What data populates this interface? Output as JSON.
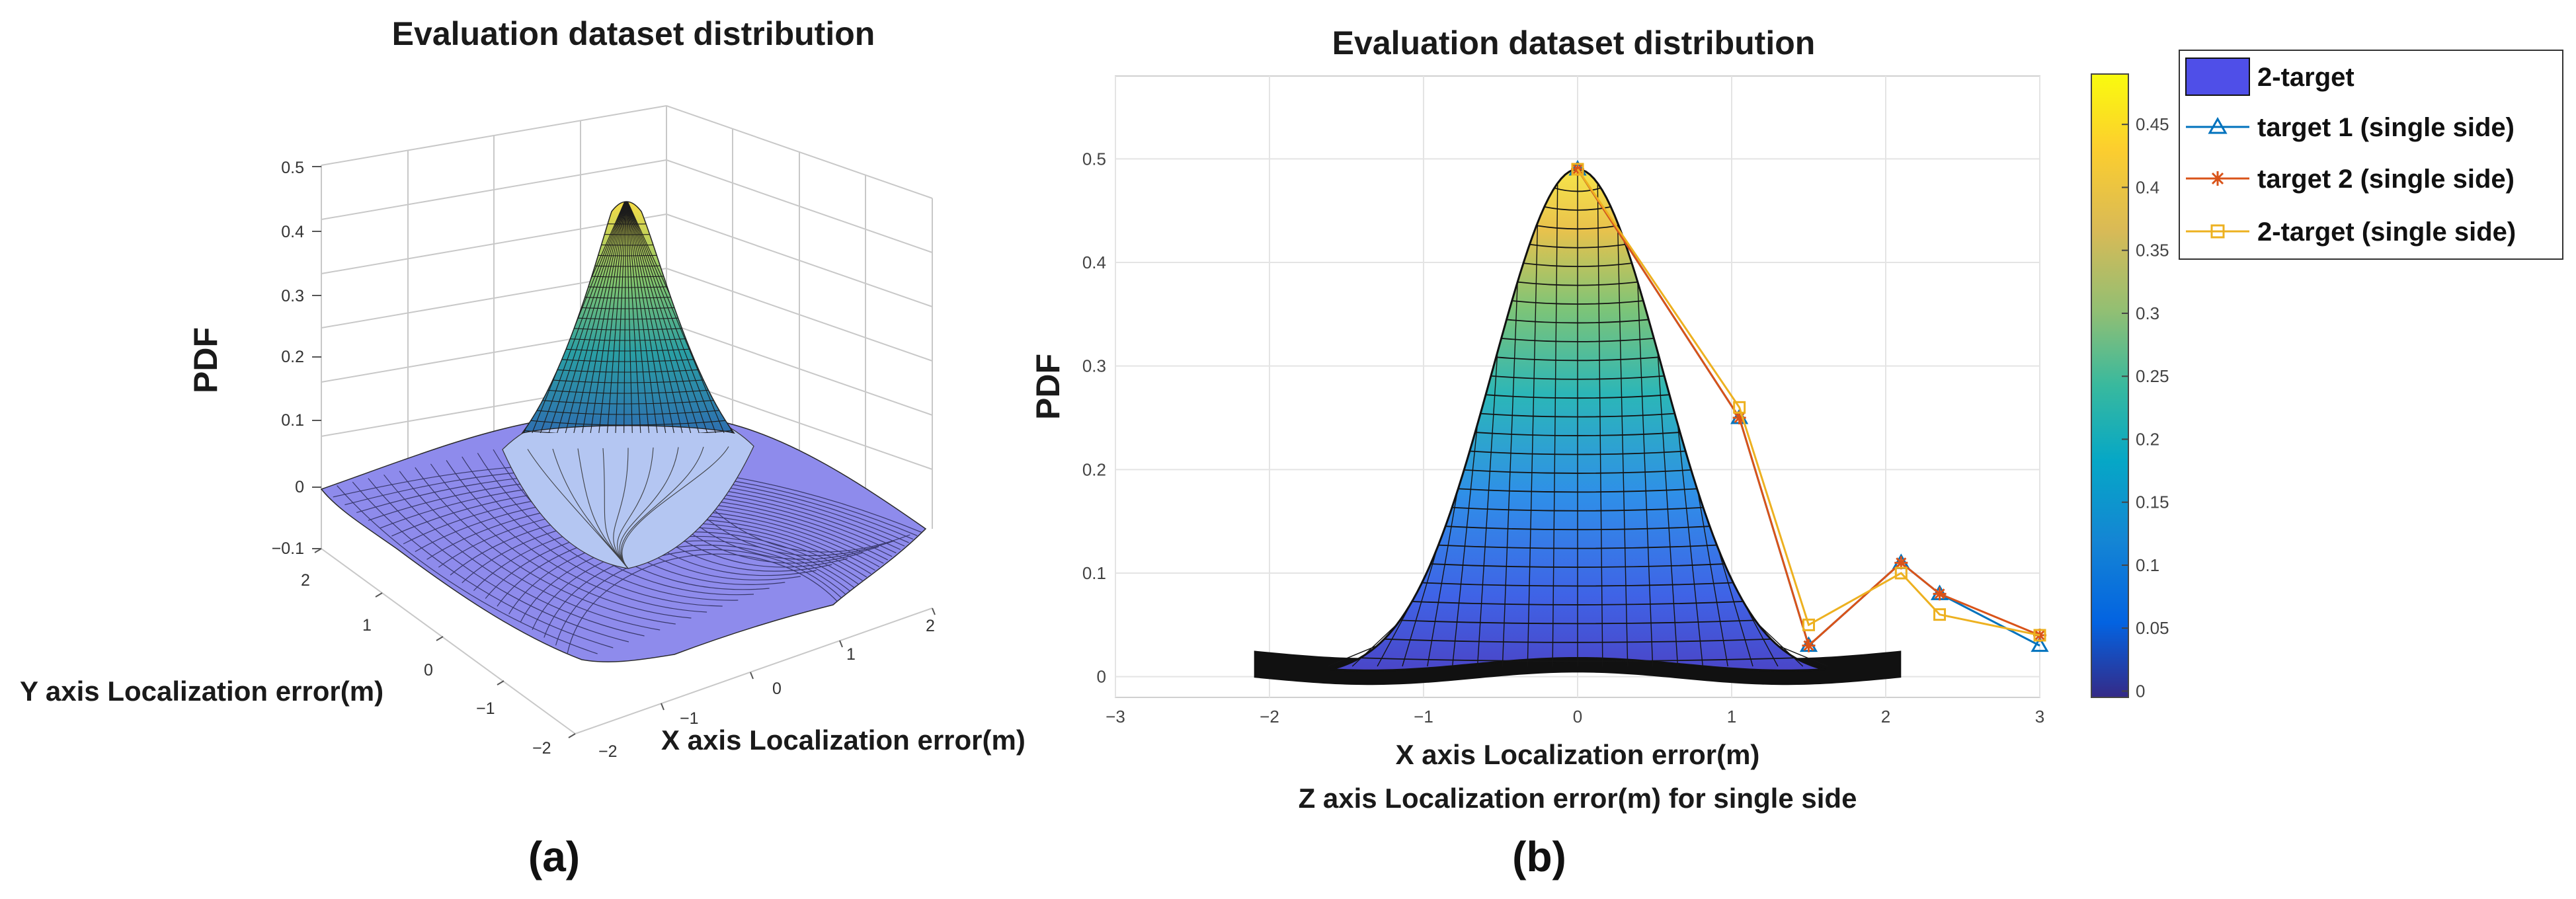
{
  "chart_data": [
    {
      "id": "a",
      "type": "surface3d",
      "title": "Evaluation dataset distribution",
      "xlabel": "X axis Localization error(m)",
      "ylabel": "Y axis Localization error(m)",
      "zlabel": "PDF",
      "x_range": [
        -2,
        2
      ],
      "y_range": [
        -2,
        2
      ],
      "z_range": [
        -0.1,
        0.5
      ],
      "x_ticks": [
        "−2",
        "−1",
        "0",
        "1",
        "2"
      ],
      "y_ticks": [
        "−2",
        "−1",
        "0",
        "1",
        "2"
      ],
      "z_ticks": [
        "−0.1",
        "0",
        "0.1",
        "0.2",
        "0.3",
        "0.4",
        "0.5"
      ],
      "surface_peak": 0.49,
      "grid": true,
      "panel_label": "(a)"
    },
    {
      "id": "b",
      "type": "line",
      "title": "Evaluation dataset distribution",
      "xlabel": "X axis Localization error(m)",
      "xlabel2": "Z axis Localization error(m) for single side",
      "ylabel": "PDF",
      "xlim": [
        -3,
        3
      ],
      "ylim": [
        -0.02,
        0.58
      ],
      "x_ticks": [
        "−3",
        "−2",
        "−1",
        "0",
        "1",
        "2",
        "3"
      ],
      "y_ticks": [
        "0",
        "0.1",
        "0.2",
        "0.3",
        "0.4",
        "0.5"
      ],
      "grid": true,
      "surface_profile": {
        "name": "2-target",
        "x_range": [
          -2.1,
          2.1
        ],
        "peak": 0.49
      },
      "series": [
        {
          "name": "target 1 (single side)",
          "color": "#0072bd",
          "marker": "triangle",
          "x": [
            0,
            1.05,
            1.5,
            2.1,
            2.35,
            3.0
          ],
          "y": [
            0.49,
            0.25,
            0.03,
            0.11,
            0.08,
            0.03
          ]
        },
        {
          "name": "target 2 (single side)",
          "color": "#d95319",
          "marker": "asterisk",
          "x": [
            0,
            1.05,
            1.5,
            2.1,
            2.35,
            3.0
          ],
          "y": [
            0.49,
            0.25,
            0.03,
            0.11,
            0.08,
            0.04
          ]
        },
        {
          "name": "2-target (single side)",
          "color": "#edb120",
          "marker": "square",
          "x": [
            0,
            1.05,
            1.5,
            2.1,
            2.35,
            3.0
          ],
          "y": [
            0.49,
            0.26,
            0.05,
            0.1,
            0.06,
            0.04
          ]
        }
      ],
      "legend": {
        "placement": "outside-right",
        "entries": [
          "2-target",
          "target 1 (single side)",
          "target 2 (single side)",
          "2-target (single side)"
        ]
      },
      "colorbar": {
        "ticks": [
          "0",
          "0.05",
          "0.1",
          "0.15",
          "0.2",
          "0.25",
          "0.3",
          "0.35",
          "0.4",
          "0.45"
        ],
        "range": [
          -0.005,
          0.49
        ]
      },
      "panel_label": "(b)"
    }
  ],
  "colors": {
    "surface_base": "#8f8cf0",
    "legend_patch": "#4f4fe8"
  }
}
